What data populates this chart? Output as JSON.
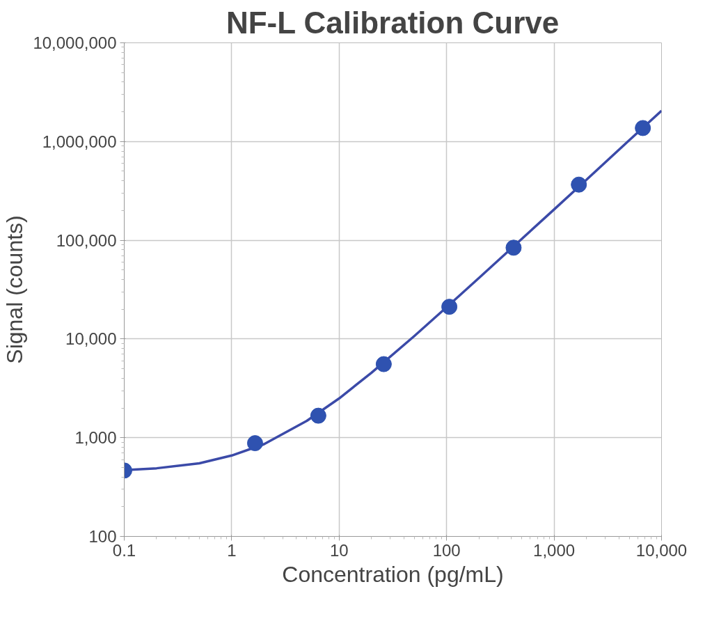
{
  "chart_data": {
    "type": "scatter",
    "title": "NF-L Calibration Curve",
    "xlabel": "Concentration (pg/mL)",
    "ylabel": "Signal (counts)",
    "log": "xy",
    "grid": true,
    "marker": "circle",
    "xlim": [
      0.1,
      10000
    ],
    "ylim": [
      100,
      10000000
    ],
    "xticks": [
      0.1,
      1,
      10,
      100,
      {
        "value": 1000,
        "label": "1,000"
      },
      {
        "value": 10000,
        "label": "10,000"
      }
    ],
    "yticks": [
      100,
      {
        "value": 1000,
        "label": "1,000"
      },
      {
        "value": 10000,
        "label": "10,000"
      },
      {
        "value": 100000,
        "label": "100,000"
      },
      {
        "value": 1000000,
        "label": "1,000,000"
      },
      {
        "value": 10000000,
        "label": "10,000,000"
      }
    ],
    "series": [
      {
        "color": "#2f52b0",
        "x": [
          0.1,
          1.65,
          6.4,
          26,
          106,
          420,
          1700,
          6700
        ],
        "values": [
          465,
          880,
          1670,
          5560,
          21200,
          84000,
          366000,
          1370000
        ]
      },
      {
        "type": "line",
        "marker": "none",
        "color": "#3b4aa8",
        "x": [
          0.1,
          0.2,
          0.5,
          1,
          2,
          5,
          10,
          20,
          50,
          100,
          200,
          500,
          1000,
          2000,
          5000,
          10000
        ],
        "values": [
          470,
          490,
          550,
          660,
          860,
          1480,
          2500,
          4550,
          10700,
          21000,
          41500,
          103000,
          205000,
          410000,
          1030000,
          2050000
        ]
      }
    ]
  }
}
